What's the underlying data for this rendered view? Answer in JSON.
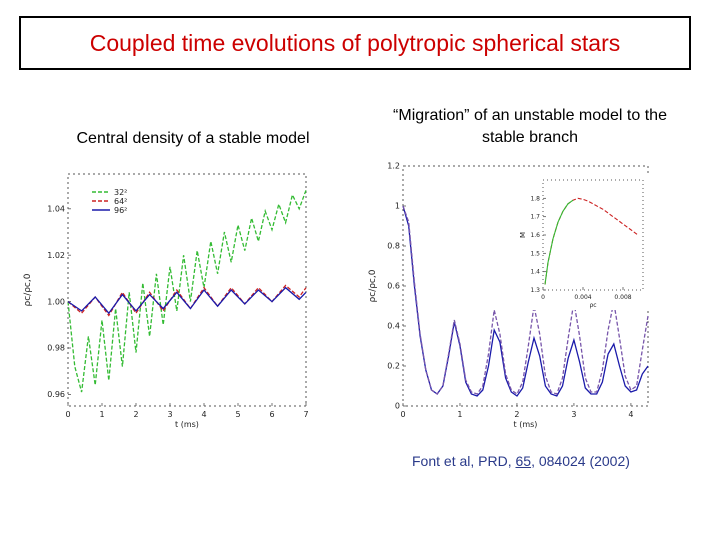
{
  "slide": {
    "title": "Coupled time evolutions of polytropic spherical stars",
    "caption_left": "Central density of a stable model",
    "caption_right": "“Migration” of an unstable model to the stable branch",
    "reference": {
      "prefix": "Font et al, PRD, ",
      "volume": "65",
      "suffix": ", 084024 (2002)"
    }
  },
  "colors": {
    "title": "#cc0000",
    "frame": "#000000",
    "reference": "#2a3a8a",
    "series_green": "#33bb33",
    "series_red": "#cc2222",
    "series_blue": "#1a1aaa"
  },
  "chart_data": [
    {
      "type": "line",
      "title": "Central density of a stable model",
      "xlabel": "t (ms)",
      "ylabel": "ρc/ρc,0",
      "xlim": [
        0,
        7
      ],
      "ylim": [
        0.955,
        1.055
      ],
      "xticks": [
        "0",
        "1",
        "2",
        "3",
        "4",
        "5",
        "6",
        "7"
      ],
      "yticks": [
        "0.96",
        "0.98",
        "1.00",
        "1.02",
        "1.04"
      ],
      "legend_position": "top-left",
      "series": [
        {
          "name": "32²",
          "color": "#33bb33",
          "style": "dashed",
          "x": [
            0,
            0.2,
            0.4,
            0.6,
            0.8,
            1.0,
            1.2,
            1.4,
            1.6,
            1.8,
            2.0,
            2.2,
            2.4,
            2.6,
            2.8,
            3.0,
            3.2,
            3.4,
            3.6,
            3.8,
            4.0,
            4.2,
            4.4,
            4.6,
            4.8,
            5.0,
            5.2,
            5.4,
            5.6,
            5.8,
            6.0,
            6.2,
            6.4,
            6.6,
            6.8,
            7.0
          ],
          "y": [
            1.0,
            0.972,
            0.961,
            0.985,
            0.964,
            0.992,
            0.966,
            0.997,
            0.972,
            1.004,
            0.978,
            1.008,
            0.985,
            1.012,
            0.99,
            1.015,
            0.996,
            1.02,
            1.0,
            1.022,
            1.006,
            1.026,
            1.012,
            1.03,
            1.017,
            1.033,
            1.022,
            1.036,
            1.026,
            1.039,
            1.031,
            1.042,
            1.034,
            1.046,
            1.04,
            1.048
          ]
        },
        {
          "name": "64²",
          "color": "#cc2222",
          "style": "dashed",
          "x": [
            0,
            0.4,
            0.8,
            1.2,
            1.6,
            2.0,
            2.4,
            2.8,
            3.2,
            3.6,
            4.0,
            4.4,
            4.8,
            5.2,
            5.6,
            6.0,
            6.4,
            6.8,
            7.0
          ],
          "y": [
            1.0,
            0.995,
            1.002,
            0.994,
            1.004,
            0.995,
            1.004,
            0.996,
            1.005,
            0.997,
            1.006,
            0.998,
            1.006,
            0.999,
            1.006,
            1.0,
            1.007,
            1.002,
            1.006
          ]
        },
        {
          "name": "96²",
          "color": "#1a1aaa",
          "style": "solid",
          "x": [
            0,
            0.4,
            0.8,
            1.2,
            1.6,
            2.0,
            2.4,
            2.8,
            3.2,
            3.6,
            4.0,
            4.4,
            4.8,
            5.2,
            5.6,
            6.0,
            6.4,
            6.8,
            7.0
          ],
          "y": [
            1.0,
            0.996,
            1.002,
            0.995,
            1.003,
            0.996,
            1.003,
            0.997,
            1.004,
            0.997,
            1.005,
            0.998,
            1.005,
            0.999,
            1.005,
            1.0,
            1.006,
            1.001,
            1.004
          ]
        }
      ]
    },
    {
      "type": "line",
      "title": "“Migration” of an unstable model to the stable branch",
      "xlabel": "t (ms)",
      "ylabel": "ρc/ρc,0",
      "xlim": [
        0,
        4.3
      ],
      "ylim": [
        0,
        1.2
      ],
      "xticks": [
        "0",
        "1",
        "2",
        "3",
        "4"
      ],
      "yticks": [
        "0",
        "0.2",
        "0.4",
        "0.6",
        "0.8",
        "1",
        "1.2"
      ],
      "series": [
        {
          "name": "",
          "color": "#1a1aaa",
          "style": "solid",
          "x": [
            0,
            0.1,
            0.2,
            0.3,
            0.4,
            0.5,
            0.6,
            0.7,
            0.8,
            0.9,
            1.0,
            1.1,
            1.2,
            1.3,
            1.4,
            1.5,
            1.6,
            1.7,
            1.8,
            1.9,
            2.0,
            2.1,
            2.2,
            2.3,
            2.4,
            2.5,
            2.6,
            2.7,
            2.8,
            2.9,
            3.0,
            3.1,
            3.2,
            3.3,
            3.4,
            3.5,
            3.6,
            3.7,
            3.8,
            3.9,
            4.0,
            4.1,
            4.2,
            4.3
          ],
          "y": [
            1.0,
            0.9,
            0.6,
            0.35,
            0.18,
            0.08,
            0.06,
            0.1,
            0.25,
            0.42,
            0.3,
            0.12,
            0.06,
            0.05,
            0.08,
            0.2,
            0.38,
            0.32,
            0.14,
            0.07,
            0.05,
            0.09,
            0.22,
            0.34,
            0.25,
            0.1,
            0.06,
            0.05,
            0.1,
            0.24,
            0.33,
            0.22,
            0.09,
            0.06,
            0.06,
            0.12,
            0.26,
            0.31,
            0.2,
            0.1,
            0.07,
            0.08,
            0.16,
            0.2
          ]
        },
        {
          "name": "",
          "color": "#7755aa",
          "style": "dashed",
          "x": [
            0,
            0.1,
            0.2,
            0.3,
            0.4,
            0.5,
            0.6,
            0.7,
            0.8,
            0.9,
            1.0,
            1.1,
            1.2,
            1.3,
            1.4,
            1.5,
            1.6,
            1.7,
            1.8,
            1.9,
            2.0,
            2.1,
            2.2,
            2.3,
            2.4,
            2.5,
            2.6,
            2.7,
            2.8,
            2.9,
            3.0,
            3.1,
            3.2,
            3.3,
            3.4,
            3.5,
            3.6,
            3.7,
            3.8,
            3.9,
            4.0,
            4.1,
            4.2,
            4.3
          ],
          "y": [
            1.0,
            0.92,
            0.62,
            0.36,
            0.18,
            0.08,
            0.06,
            0.1,
            0.26,
            0.43,
            0.31,
            0.13,
            0.07,
            0.06,
            0.1,
            0.26,
            0.48,
            0.36,
            0.16,
            0.08,
            0.06,
            0.12,
            0.3,
            0.5,
            0.36,
            0.15,
            0.07,
            0.06,
            0.14,
            0.34,
            0.52,
            0.35,
            0.14,
            0.07,
            0.07,
            0.18,
            0.38,
            0.52,
            0.34,
            0.15,
            0.08,
            0.1,
            0.28,
            0.45
          ]
        }
      ],
      "inset": {
        "type": "line",
        "xlabel": "ρc",
        "ylabel": "M",
        "xlim": [
          0,
          0.01
        ],
        "ylim": [
          1.3,
          1.9
        ],
        "xticks": [
          "0",
          "0.004",
          "0.008"
        ],
        "yticks": [
          "1.3",
          "1.4",
          "1.5",
          "1.6",
          "1.7",
          "1.8"
        ],
        "series": [
          {
            "name": "",
            "color": "#cc2222",
            "style": "dashed",
            "x": [
              0.0002,
              0.0005,
              0.001,
              0.0015,
              0.002,
              0.0025,
              0.003,
              0.0035,
              0.004,
              0.0045,
              0.005,
              0.0055,
              0.006,
              0.0065,
              0.007,
              0.0075,
              0.008,
              0.0085,
              0.009,
              0.0095
            ],
            "y": [
              1.33,
              1.45,
              1.58,
              1.67,
              1.73,
              1.77,
              1.79,
              1.8,
              1.795,
              1.785,
              1.77,
              1.755,
              1.74,
              1.72,
              1.7,
              1.68,
              1.66,
              1.64,
              1.62,
              1.6
            ]
          },
          {
            "name": "",
            "color": "#33bb33",
            "style": "solid",
            "x": [
              0.0002,
              0.0005,
              0.001,
              0.0015,
              0.002,
              0.0025,
              0.003
            ],
            "y": [
              1.33,
              1.45,
              1.58,
              1.67,
              1.73,
              1.77,
              1.79
            ]
          }
        ]
      }
    }
  ]
}
